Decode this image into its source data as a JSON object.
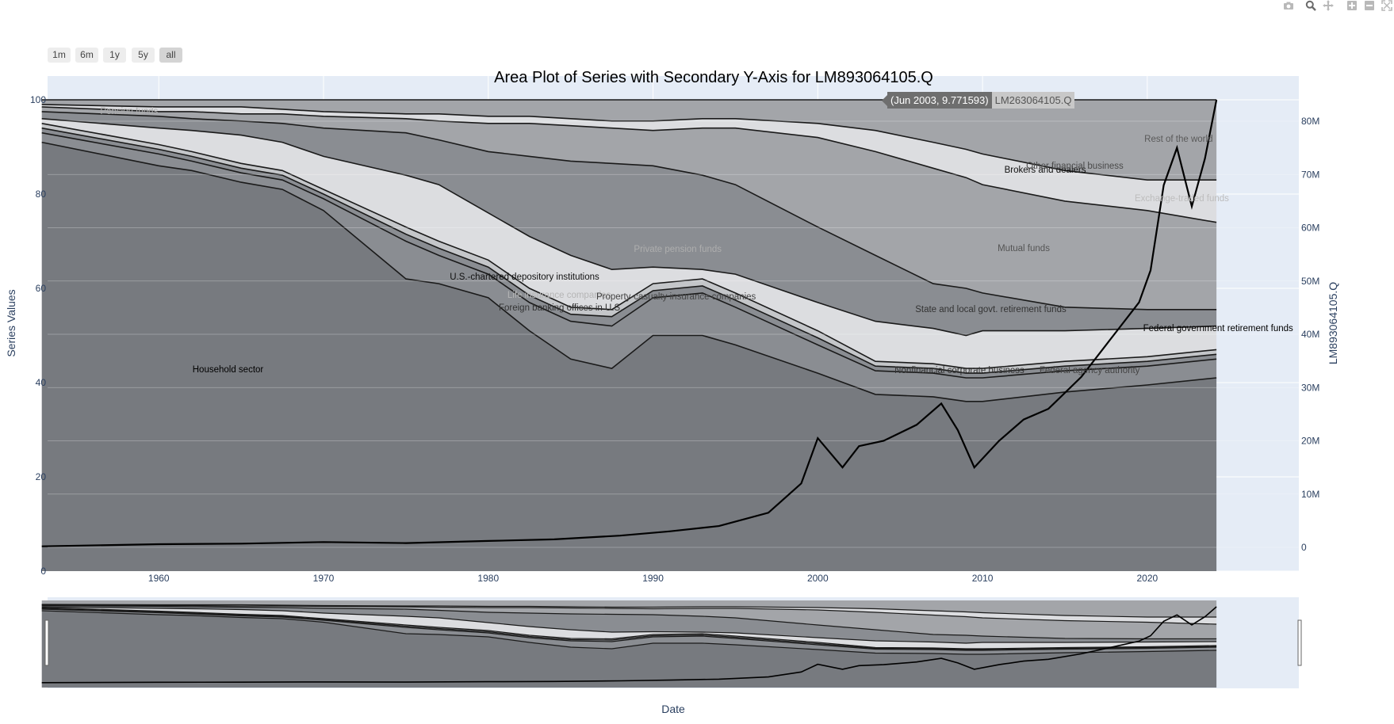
{
  "toolbar": {
    "icons": [
      "camera-icon",
      "zoom-icon",
      "pan-icon",
      "zoom-in-icon",
      "zoom-out-icon",
      "autoscale-icon"
    ]
  },
  "range_selector": {
    "buttons": [
      {
        "label": "1m",
        "active": false
      },
      {
        "label": "6m",
        "active": false
      },
      {
        "label": "1y",
        "active": false
      },
      {
        "label": "5y",
        "active": false
      },
      {
        "label": "all",
        "active": true
      }
    ]
  },
  "tooltip": {
    "value": "(Jun 2003, 9.771593)",
    "series": "LM263064105.Q"
  },
  "colors": {
    "plot_bg": "#e5ecf6",
    "area_dark": "#777a7f",
    "area_mid": "#8a8d92",
    "area_light": "#dcdde0",
    "area_top": "#a3a5a9",
    "line": "#000000"
  },
  "chart_data": {
    "type": "area",
    "title": "Area Plot of Series with Secondary Y-Axis for LM893064105.Q",
    "xlabel": "Date",
    "ylabel": "Series Values",
    "y2label": "LM893064105.Q",
    "xlim": [
      1953.25,
      2029.2
    ],
    "ylim": [
      0,
      100
    ],
    "y2lim": [
      -4.3,
      84
    ],
    "x_ticks": [
      "1960",
      "1970",
      "1980",
      "1990",
      "2000",
      "2010",
      "2020"
    ],
    "y_ticks": [
      "0",
      "20",
      "40",
      "60",
      "80",
      "100"
    ],
    "y2_ticks": [
      "0",
      "10M",
      "20M",
      "30M",
      "40M",
      "50M",
      "60M",
      "70M",
      "80M"
    ],
    "grid": true,
    "stacked": true,
    "x": [
      1952.9,
      1960,
      1962,
      1965,
      1967.5,
      1970,
      1975,
      1977,
      1980,
      1982.5,
      1985,
      1987.5,
      1990,
      1993,
      1995,
      2000,
      2003.5,
      2007,
      2009,
      2010,
      2015,
      2020,
      2024.2
    ],
    "boundaries": [
      {
        "series": "Household sector",
        "y": [
          91,
          86,
          85,
          82.5,
          81,
          76.5,
          62,
          61,
          58,
          51,
          45,
          43,
          50,
          50,
          48,
          42,
          37.5,
          37,
          36,
          36,
          38,
          39.5,
          41
        ]
      },
      {
        "series": "U.S.-chartered depository institutions",
        "y": [
          93,
          88.5,
          87,
          84.5,
          83,
          79,
          70,
          67,
          63,
          57,
          53,
          52,
          58,
          59,
          56,
          48,
          42.5,
          42,
          41,
          41,
          42.5,
          43.5,
          45
        ]
      },
      {
        "series": "Foreign banking offices in U.S.",
        "y": [
          94,
          89.5,
          88,
          85.5,
          84,
          80,
          71.5,
          68.5,
          64.5,
          58.5,
          54.5,
          54,
          59.5,
          60.5,
          57.5,
          49.5,
          43.5,
          43,
          42,
          42,
          43.5,
          44.5,
          46
        ]
      },
      {
        "series": "Property-casualty insurance companies",
        "y": [
          95,
          90.5,
          89,
          86.5,
          85,
          81,
          73,
          70,
          66,
          60,
          56,
          55.5,
          61,
          62,
          59,
          51,
          44.5,
          44,
          43,
          43,
          44.5,
          45.5,
          47
        ]
      },
      {
        "series": "Private pension funds",
        "y": [
          96,
          94,
          93.5,
          92.5,
          91,
          88,
          84,
          82,
          76,
          71,
          67,
          64,
          64.5,
          64,
          63,
          57,
          53,
          51.5,
          50,
          51,
          51,
          51.5,
          52
        ]
      },
      {
        "series": "State and local govt. retirement funds",
        "y": [
          97.5,
          96.5,
          96,
          95.5,
          95,
          94,
          93,
          91.5,
          89,
          88,
          87,
          86.5,
          86,
          84,
          82,
          73,
          67,
          61,
          60,
          59,
          56,
          55.5,
          55.5
        ]
      },
      {
        "series": "Mutual funds",
        "y": [
          98.5,
          97.5,
          97.5,
          97,
          97,
          96.5,
          96,
          95.5,
          95,
          95,
          94.5,
          94,
          93.5,
          94,
          94,
          92,
          89,
          85.5,
          83.5,
          82,
          78.5,
          76.5,
          74
        ]
      },
      {
        "series": "Exchange-traded funds",
        "y": [
          99,
          98.5,
          98.5,
          98.5,
          98,
          97.5,
          97,
          97,
          96.5,
          96.5,
          96,
          95.5,
          95.5,
          96,
          96,
          95,
          93.5,
          91,
          89.5,
          88.5,
          85,
          83,
          83
        ]
      }
    ],
    "series_labels": [
      {
        "name": "Rest of the world",
        "x": 2021.9,
        "y": 91.5,
        "color": "#5a5a5a"
      },
      {
        "name": "Brokers and dealers",
        "x": 2013.8,
        "y": 84.8,
        "color": "#111111"
      },
      {
        "name": "Other financial business",
        "x": 2015.6,
        "y": 85.7,
        "color": "#4a4a4a"
      },
      {
        "name": "Exchange-traded funds",
        "x": 2022.1,
        "y": 78.9,
        "color": "#bdbdbd"
      },
      {
        "name": "Mutual funds",
        "x": 2012.5,
        "y": 68.2,
        "color": "#555555"
      },
      {
        "name": "Private pension funds",
        "x": 1991.5,
        "y": 68.0,
        "color": "#aeaeae"
      },
      {
        "name": "U.S.-chartered depository institutions",
        "x": 1982.2,
        "y": 62.2,
        "color": "#111111"
      },
      {
        "name": "Life insurance companies",
        "x": 1984.3,
        "y": 58.3,
        "color": "#b5b5b5"
      },
      {
        "name": "Property-casualty insurance companies",
        "x": 1991.4,
        "y": 57.9,
        "color": "#444444"
      },
      {
        "name": "Foreign banking offices in U.S.",
        "x": 1984.4,
        "y": 55.7,
        "color": "#333333"
      },
      {
        "name": "State and local govt. retirement funds",
        "x": 2010.5,
        "y": 55.3,
        "color": "#333333"
      },
      {
        "name": "Federal government retirement funds",
        "x": 2024.3,
        "y": 51.3,
        "color": "#000000"
      },
      {
        "name": "Nonfinancial corporate business",
        "x": 2008.6,
        "y": 42.4,
        "color": "#333333"
      },
      {
        "name": "Federal agency authority",
        "x": 2016.5,
        "y": 42.3,
        "color": "#444444"
      },
      {
        "name": "Household sector",
        "x": 1964.2,
        "y": 42.6,
        "color": "#000000"
      },
      {
        "name": "Pension funds",
        "x": 1958.2,
        "y": 97.3,
        "color": "#aeaeae"
      }
    ],
    "secondary_series": {
      "name": "LM893064105.Q",
      "x": [
        1952.9,
        1960,
        1965,
        1970,
        1975,
        1980,
        1984,
        1988,
        1991,
        1994,
        1997,
        1999,
        2000,
        2001.5,
        2002.5,
        2004,
        2006,
        2007.5,
        2008.5,
        2009.5,
        2011,
        2012.5,
        2014,
        2016,
        2018,
        2019.5,
        2020.2,
        2021,
        2021.8,
        2022.7,
        2023.5,
        2024.2
      ],
      "y": [
        0.2,
        0.6,
        0.7,
        1.0,
        0.8,
        1.2,
        1.5,
        2.2,
        3.0,
        4.0,
        6.5,
        12.0,
        20.5,
        15.0,
        19.0,
        20.0,
        23.0,
        27.0,
        22.0,
        15.0,
        20.0,
        24.0,
        26.0,
        32.0,
        40.0,
        46.0,
        52.0,
        68.0,
        75.0,
        64.0,
        73.0,
        84.0
      ]
    }
  }
}
